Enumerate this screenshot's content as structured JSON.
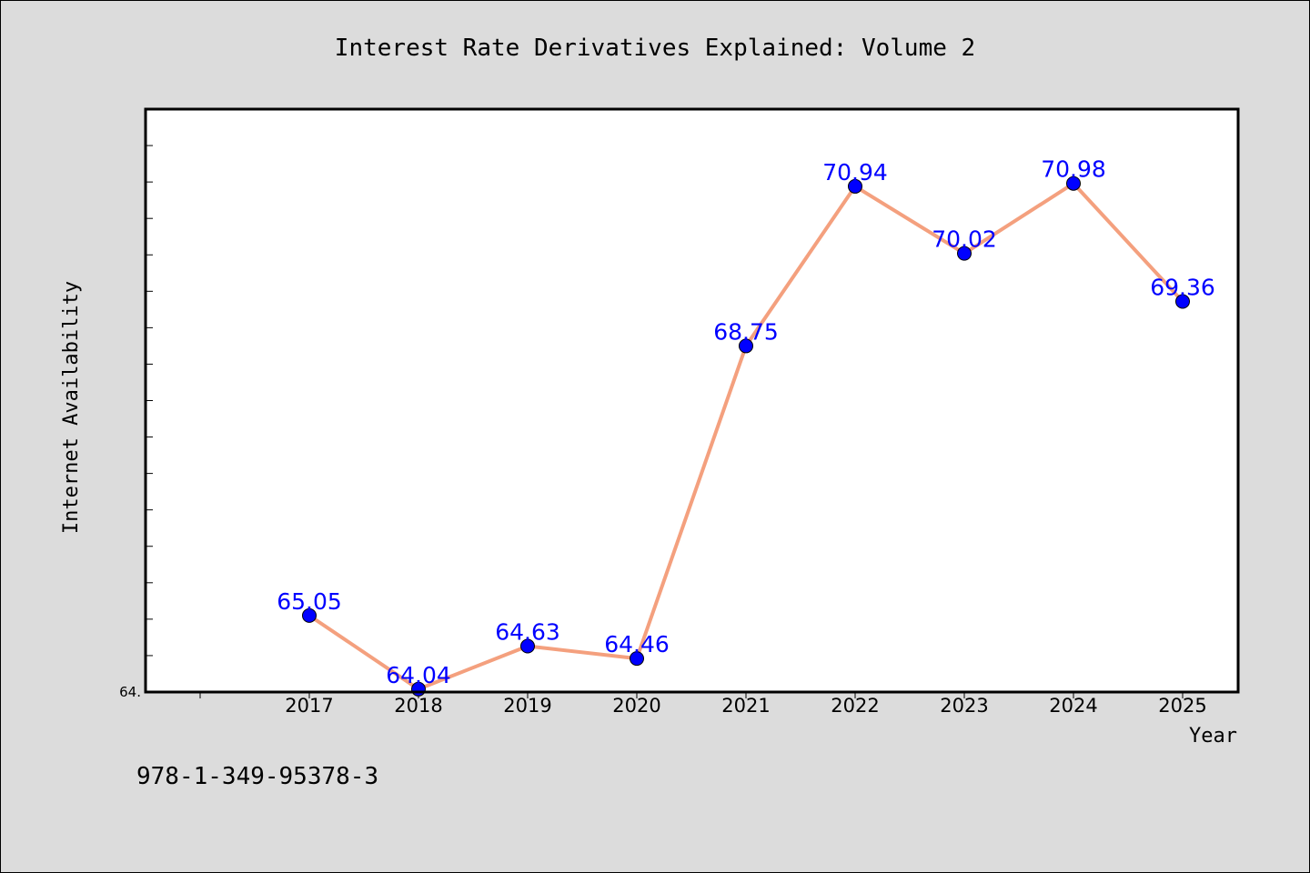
{
  "chart_data": {
    "type": "line",
    "title": "Interest Rate Derivatives Explained: Volume 2",
    "xlabel": "Year",
    "ylabel": "Internet Availability",
    "x": [
      "2017",
      "2018",
      "2019",
      "2020",
      "2021",
      "2022",
      "2023",
      "2024",
      "2025"
    ],
    "series": [
      {
        "values": [
          65.05,
          64.04,
          64.63,
          64.46,
          68.75,
          70.94,
          70.02,
          70.98,
          69.36
        ],
        "data_labels": [
          "65.05",
          "64.04",
          "64.63",
          "64.46",
          "68.75",
          "70.94",
          "70.02",
          "70.98",
          "69.36"
        ]
      }
    ],
    "ylim": [
      64.0,
      72.0
    ],
    "y_tick_label": "64.",
    "grid": false,
    "colors": {
      "line": "#f4a07e",
      "marker": "#0000ff",
      "data_label": "#0000ff",
      "plot_background": "#ffffff",
      "figure_background": "#dcdcdc"
    }
  },
  "footer": {
    "isbn": "978-1-349-95378-3"
  }
}
